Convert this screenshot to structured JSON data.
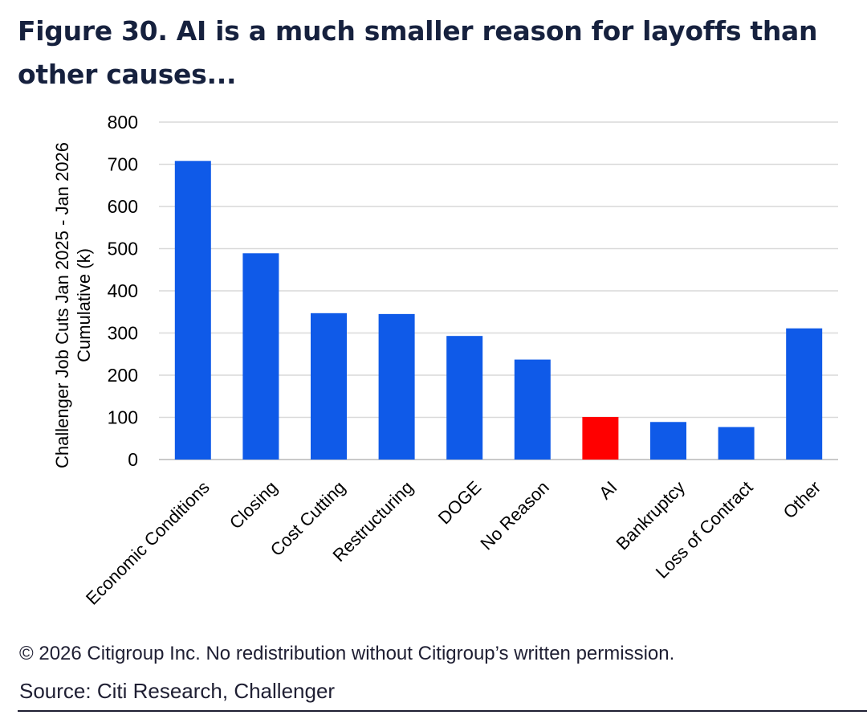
{
  "figure": {
    "title": "Figure 30. AI is a much smaller reason for layoffs than other causes...",
    "copyright": "© 2026 Citigroup Inc. No redistribution without Citigroup’s written permission.",
    "source": "Source: Citi Research, Challenger"
  },
  "chart_data": {
    "type": "bar",
    "ylabel": "Challenger Job Cuts Jan 2025 - Jan 2026",
    "ylabel_line2": "Cumulative (k)",
    "ylim": [
      0,
      800
    ],
    "yticks": [
      0,
      100,
      200,
      300,
      400,
      500,
      600,
      700,
      800
    ],
    "grid": true,
    "categories": [
      "Economic Conditions",
      "Closing",
      "Cost Cutting",
      "Restructuring",
      "DOGE",
      "No Reason",
      "AI",
      "Bankruptcy",
      "Loss of Contract",
      "Other"
    ],
    "values": [
      708,
      489,
      347,
      345,
      293,
      237,
      101,
      89,
      77,
      311
    ],
    "colors": [
      "#0f5ae8",
      "#0f5ae8",
      "#0f5ae8",
      "#0f5ae8",
      "#0f5ae8",
      "#0f5ae8",
      "#ff0000",
      "#0f5ae8",
      "#0f5ae8",
      "#0f5ae8"
    ]
  }
}
